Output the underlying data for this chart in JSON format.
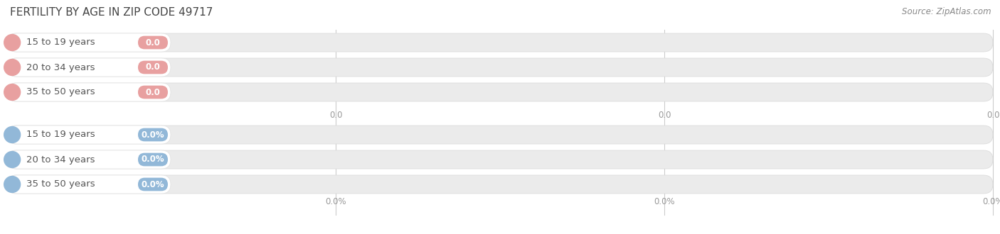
{
  "title": "FERTILITY BY AGE IN ZIP CODE 49717",
  "source": "Source: ZipAtlas.com",
  "top_categories": [
    "15 to 19 years",
    "20 to 34 years",
    "35 to 50 years"
  ],
  "bottom_categories": [
    "15 to 19 years",
    "20 to 34 years",
    "35 to 50 years"
  ],
  "top_value_labels": [
    "0.0",
    "0.0",
    "0.0"
  ],
  "bottom_value_labels": [
    "0.0%",
    "0.0%",
    "0.0%"
  ],
  "top_badge_color": "#e8a0a0",
  "top_circle_color": "#e8a0a0",
  "bottom_badge_color": "#92b8d8",
  "bottom_circle_color": "#92b8d8",
  "bar_bg_color": "#ebebeb",
  "bar_bg_border": "#d8d8d8",
  "bar_white": "#ffffff",
  "bar_white_border": "#e0e0e0",
  "grid_color": "#cccccc",
  "tick_color": "#999999",
  "title_color": "#444444",
  "source_color": "#888888",
  "label_color": "#555555",
  "badge_text_color": "#ffffff",
  "background_color": "#ffffff",
  "title_fontsize": 11,
  "label_fontsize": 9.5,
  "tick_fontsize": 8.5,
  "source_fontsize": 8.5
}
